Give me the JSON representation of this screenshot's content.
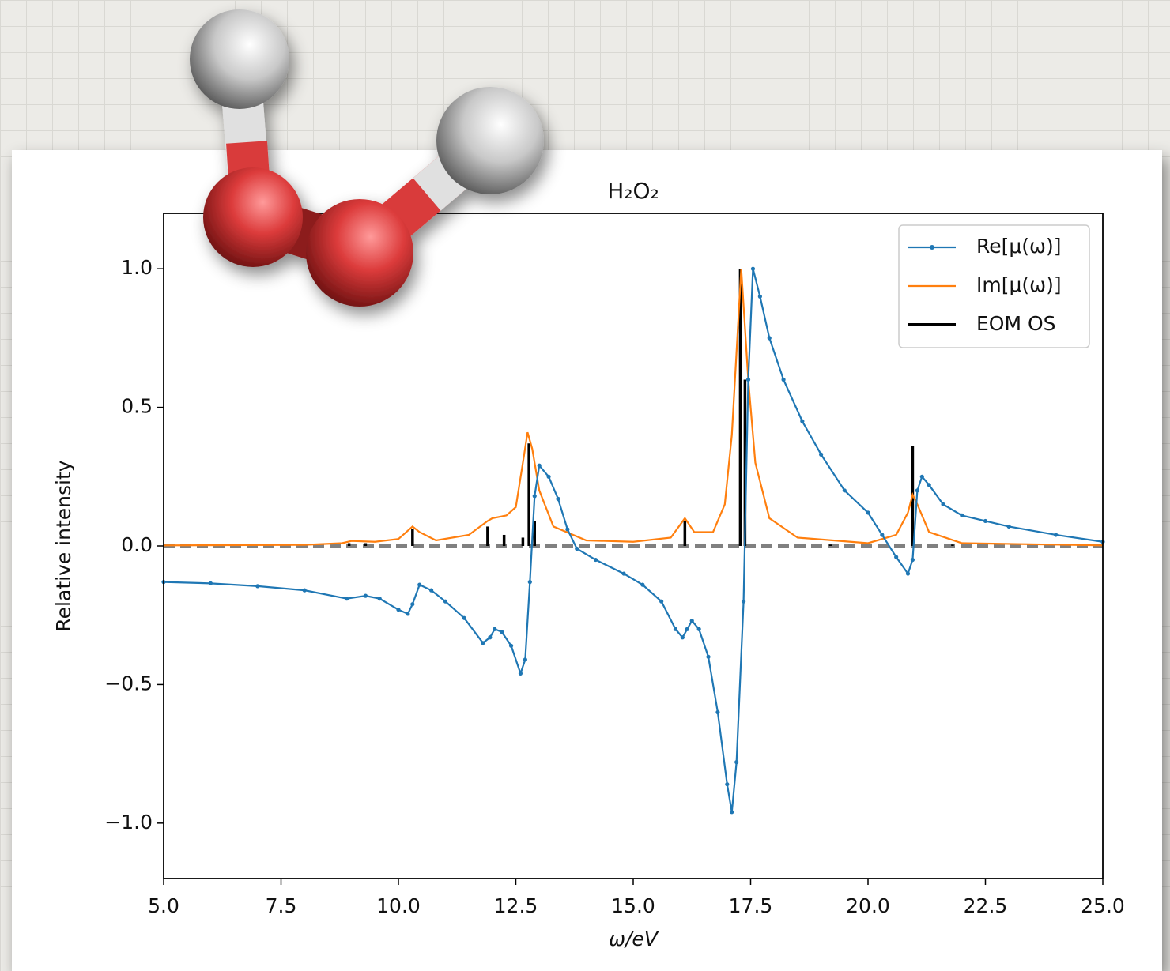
{
  "chart_data": {
    "type": "line",
    "title": "H₂O₂",
    "x_label": "ω/eV",
    "y_label": "Relative intensity",
    "xlim": [
      5,
      25
    ],
    "ylim": [
      -1.2,
      1.2
    ],
    "xticks": [
      {
        "value": 5,
        "label": "5.0"
      },
      7.5,
      {
        "value": 10,
        "label": "10.0"
      },
      12.5,
      {
        "value": 15,
        "label": "15.0"
      },
      17.5,
      {
        "value": 20,
        "label": "20.0"
      },
      22.5,
      {
        "value": 25,
        "label": "25.0"
      }
    ],
    "yticks": [
      {
        "value": -1,
        "label": "−1.0"
      },
      {
        "value": -0.5,
        "label": "−0.5"
      },
      {
        "value": 0,
        "label": "0.0"
      },
      {
        "value": 0.5,
        "label": "0.5"
      },
      {
        "value": 1,
        "label": "1.0"
      }
    ],
    "hline": 0,
    "legend": "upper right",
    "series": [
      {
        "name": "Re[μ(ω)]",
        "color": "#1f77b4",
        "markers": true,
        "x": [
          5,
          6,
          7,
          8,
          8.9,
          9.3,
          9.6,
          10.0,
          10.2,
          10.3,
          10.45,
          10.7,
          11.0,
          11.4,
          11.8,
          11.95,
          12.05,
          12.2,
          12.4,
          12.6,
          12.7,
          12.8,
          12.9,
          13.0,
          13.2,
          13.4,
          13.6,
          13.8,
          14.2,
          14.8,
          15.2,
          15.6,
          15.9,
          16.05,
          16.15,
          16.25,
          16.4,
          16.6,
          16.8,
          17.0,
          17.1,
          17.2,
          17.35,
          17.45,
          17.55,
          17.7,
          17.9,
          18.2,
          18.6,
          19.0,
          19.5,
          20.0,
          20.3,
          20.6,
          20.85,
          20.95,
          21.05,
          21.15,
          21.3,
          21.6,
          22.0,
          22.5,
          23.0,
          24.0,
          25.0
        ],
        "values": [
          -0.13,
          -0.135,
          -0.145,
          -0.16,
          -0.19,
          -0.18,
          -0.19,
          -0.23,
          -0.245,
          -0.21,
          -0.14,
          -0.16,
          -0.2,
          -0.26,
          -0.35,
          -0.33,
          -0.3,
          -0.31,
          -0.36,
          -0.46,
          -0.41,
          -0.13,
          0.18,
          0.29,
          0.25,
          0.17,
          0.06,
          -0.01,
          -0.05,
          -0.1,
          -0.14,
          -0.2,
          -0.3,
          -0.33,
          -0.3,
          -0.27,
          -0.3,
          -0.4,
          -0.6,
          -0.86,
          -0.96,
          -0.78,
          -0.2,
          0.6,
          1.0,
          0.9,
          0.75,
          0.6,
          0.45,
          0.33,
          0.2,
          0.12,
          0.04,
          -0.04,
          -0.1,
          -0.05,
          0.2,
          0.25,
          0.22,
          0.15,
          0.11,
          0.09,
          0.07,
          0.04,
          0.015
        ]
      },
      {
        "name": "Im[μ(ω)]",
        "color": "#ff7f0e",
        "markers": false,
        "x": [
          5,
          8,
          8.8,
          9.0,
          9.5,
          10.0,
          10.2,
          10.3,
          10.45,
          10.8,
          11.5,
          11.9,
          12.0,
          12.3,
          12.5,
          12.65,
          12.75,
          12.85,
          13.0,
          13.3,
          14.0,
          15.0,
          15.8,
          16.1,
          16.3,
          16.7,
          16.95,
          17.1,
          17.25,
          17.3,
          17.45,
          17.6,
          17.9,
          18.5,
          20.0,
          20.6,
          20.85,
          20.95,
          21.05,
          21.3,
          22.0,
          25.0
        ],
        "values": [
          0.002,
          0.004,
          0.01,
          0.018,
          0.015,
          0.025,
          0.055,
          0.07,
          0.05,
          0.02,
          0.04,
          0.09,
          0.1,
          0.11,
          0.14,
          0.3,
          0.41,
          0.35,
          0.2,
          0.07,
          0.02,
          0.015,
          0.03,
          0.1,
          0.05,
          0.05,
          0.15,
          0.4,
          0.85,
          1.0,
          0.6,
          0.3,
          0.1,
          0.03,
          0.01,
          0.04,
          0.12,
          0.185,
          0.15,
          0.05,
          0.01,
          0.002
        ]
      }
    ],
    "sticks": {
      "name": "EOM OS",
      "color": "#000000",
      "x": [
        8.95,
        9.3,
        10.3,
        11.9,
        12.25,
        12.65,
        12.78,
        12.9,
        16.1,
        17.28,
        17.38,
        19.2,
        20.95,
        21.8
      ],
      "values": [
        0.01,
        0.01,
        0.06,
        0.07,
        0.04,
        0.03,
        0.37,
        0.09,
        0.09,
        1.0,
        0.6,
        0.005,
        0.36,
        0.005
      ]
    }
  }
}
